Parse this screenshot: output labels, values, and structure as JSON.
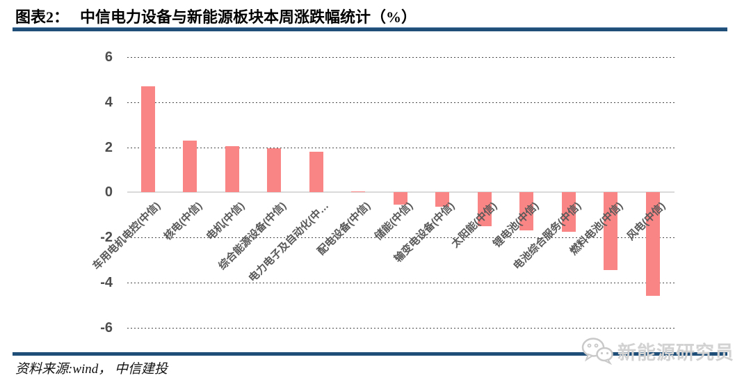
{
  "header": {
    "label": "图表2：",
    "title": "中信电力设备与新能源板块本周涨跌幅统计（%）"
  },
  "chart_data": {
    "type": "bar",
    "title": "中信电力设备与新能源板块本周涨跌幅统计（%）",
    "categories": [
      "车用电机电控(中信)",
      "核电(中信)",
      "电机(中信)",
      "综合能源设备(中信)",
      "电力电子及自动化(中…",
      "配电设备(中信)",
      "储能(中信)",
      "输变电设备(中信)",
      "太阳能(中信)",
      "锂电池(中信)",
      "电池综合服务(中信)",
      "燃料电池(中信)",
      "风电(中信)"
    ],
    "values": [
      4.7,
      2.3,
      2.05,
      1.95,
      1.8,
      0.05,
      -0.55,
      -0.65,
      -1.5,
      -1.7,
      -1.75,
      -3.45,
      -4.6
    ],
    "xlabel": "",
    "ylabel": "",
    "ylim": [
      -6,
      6
    ],
    "yticks": [
      6,
      4,
      2,
      0,
      -2,
      -4,
      -6
    ],
    "grid": "horizontal-dotted",
    "legend": "none",
    "bar_color": "#fa8585"
  },
  "footer": {
    "source": "资料来源:wind， 中信建投",
    "watermark": "新能源研究员",
    "watermark_icon": "wechat-icon"
  },
  "colors": {
    "bar": "#fa8585",
    "rule": "#1f4e79",
    "axis_text": "#595959",
    "tick_text": "#4d4d4d",
    "watermark": "#d2d2d2",
    "zero_line": "#d9d9d9"
  }
}
